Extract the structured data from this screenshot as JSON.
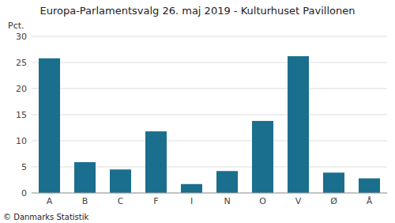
{
  "chart_data": {
    "type": "bar",
    "title": "Europa-Parlamentsvalg 26. maj 2019 - Kulturhuset Pavillonen",
    "categories": [
      "A",
      "B",
      "C",
      "F",
      "I",
      "N",
      "O",
      "V",
      "Ø",
      "Å"
    ],
    "values": [
      25.8,
      5.9,
      4.5,
      11.8,
      1.7,
      4.2,
      13.8,
      26.2,
      3.9,
      2.8
    ],
    "color": "#1a6e8e",
    "ylabel": "Pct.",
    "footer": "© Danmarks Statistik",
    "ylim": [
      0,
      30
    ],
    "yticks": [
      0,
      5,
      10,
      15,
      20,
      25,
      30
    ],
    "grid": true
  }
}
